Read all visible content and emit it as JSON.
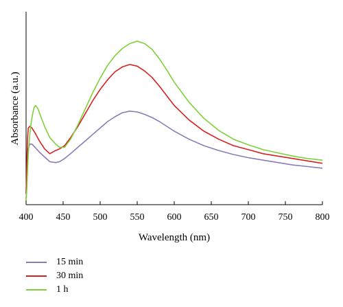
{
  "chart_data": {
    "type": "line",
    "xlabel": "Wavelength (nm)",
    "ylabel": "Absorbance (a.u.)",
    "xlim": [
      400,
      800
    ],
    "ylim": [
      0,
      1
    ],
    "xticks": [
      "400",
      "450",
      "500",
      "550",
      "600",
      "650",
      "700",
      "750",
      "800"
    ],
    "yticks_shown": false,
    "grid": false,
    "legend_position": "below",
    "series": [
      {
        "name": "15 min",
        "color": "#8a7ab8",
        "x": [
          400,
          401,
          402,
          403,
          405,
          408,
          412,
          418,
          425,
          432,
          440,
          445,
          452,
          460,
          470,
          480,
          490,
          500,
          510,
          520,
          530,
          540,
          550,
          560,
          570,
          580,
          590,
          600,
          620,
          640,
          660,
          680,
          700,
          720,
          740,
          760,
          780,
          800
        ],
        "y": [
          0.02,
          0.12,
          0.24,
          0.33,
          0.36,
          0.36,
          0.34,
          0.31,
          0.28,
          0.25,
          0.245,
          0.25,
          0.27,
          0.3,
          0.34,
          0.38,
          0.42,
          0.46,
          0.5,
          0.53,
          0.555,
          0.565,
          0.56,
          0.545,
          0.525,
          0.5,
          0.47,
          0.44,
          0.39,
          0.35,
          0.32,
          0.295,
          0.275,
          0.26,
          0.245,
          0.23,
          0.22,
          0.21
        ]
      },
      {
        "name": "30 min",
        "color": "#d62020",
        "x": [
          400,
          401,
          402,
          403,
          405,
          408,
          412,
          418,
          425,
          432,
          440,
          445,
          452,
          460,
          470,
          480,
          490,
          500,
          510,
          520,
          530,
          540,
          550,
          560,
          570,
          580,
          590,
          600,
          620,
          640,
          660,
          680,
          700,
          720,
          740,
          760,
          780,
          800
        ],
        "y": [
          0.05,
          0.25,
          0.4,
          0.46,
          0.47,
          0.46,
          0.43,
          0.38,
          0.33,
          0.3,
          0.32,
          0.33,
          0.35,
          0.4,
          0.47,
          0.55,
          0.63,
          0.7,
          0.76,
          0.81,
          0.84,
          0.855,
          0.845,
          0.815,
          0.775,
          0.72,
          0.66,
          0.6,
          0.51,
          0.44,
          0.39,
          0.35,
          0.325,
          0.3,
          0.285,
          0.27,
          0.255,
          0.24
        ]
      },
      {
        "name": "1 h",
        "color": "#7ed03a",
        "x": [
          400,
          401,
          402,
          403,
          405,
          407,
          409,
          411,
          413,
          416,
          420,
          425,
          432,
          440,
          445,
          452,
          460,
          470,
          480,
          490,
          500,
          510,
          520,
          530,
          540,
          550,
          560,
          570,
          580,
          590,
          600,
          620,
          640,
          660,
          680,
          700,
          720,
          740,
          760,
          780,
          800
        ],
        "y": [
          0.01,
          0.08,
          0.2,
          0.3,
          0.42,
          0.5,
          0.55,
          0.59,
          0.6,
          0.58,
          0.53,
          0.47,
          0.4,
          0.36,
          0.34,
          0.34,
          0.39,
          0.48,
          0.58,
          0.68,
          0.77,
          0.85,
          0.91,
          0.955,
          0.985,
          1.0,
          0.985,
          0.95,
          0.89,
          0.82,
          0.745,
          0.62,
          0.52,
          0.445,
          0.39,
          0.355,
          0.325,
          0.305,
          0.285,
          0.27,
          0.26
        ]
      }
    ]
  }
}
